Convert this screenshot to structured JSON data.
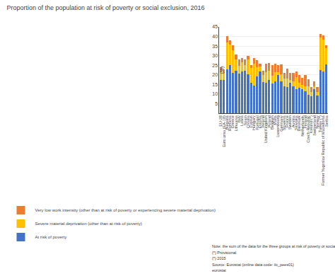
{
  "chart_data": {
    "type": "bar",
    "stacked": true,
    "title": "Proportion of the population at risk of poverty or social exclusion, 2016",
    "ylabel": "(%)",
    "ylim": [
      0,
      45
    ],
    "yticks": [
      5,
      10,
      15,
      20,
      25,
      30,
      35,
      40,
      45
    ],
    "grid": true,
    "categories": [
      "EU-28",
      "Euro area (EA-18)",
      "Bulgaria",
      "Romania",
      "Greece",
      "Lithuania",
      "Italy",
      "Latvia",
      "Spain",
      "Croatia",
      "Cyprus",
      "Hungary",
      "Portugal",
      "Estonia",
      "Ireland",
      "United Kingdom",
      "Poland",
      "Belgium",
      "Malta",
      "Luxembourg",
      "Germany",
      "Slovenia",
      "France",
      "Sweden",
      "Austria",
      "Slovakia",
      "Denmark",
      "Netherlands",
      "Finland",
      "Czech Republic",
      "Iceland (*)",
      "Switzerland",
      "Norway",
      "Turkey (*)",
      "Former Yugoslav Republic of Macedonia",
      "Serbia"
    ],
    "series": [
      {
        "name": "At risk of poverty",
        "color": "#4472c4",
        "values": [
          17.3,
          17.3,
          23.0,
          25.2,
          21.2,
          22.2,
          20.6,
          21.8,
          22.3,
          20.4,
          16.0,
          14.5,
          19.0,
          21.7,
          16.3,
          15.9,
          17.3,
          15.5,
          16.5,
          19.8,
          16.5,
          13.9,
          13.6,
          15.8,
          14.1,
          12.7,
          13.2,
          12.7,
          11.6,
          9.7,
          9.0,
          12.5,
          9.3,
          22.5,
          21.9,
          25.5
        ]
      },
      {
        "name": "Severe material deprivation (other than at risk of poverty)",
        "color": "#ffc000",
        "values": [
          4.8,
          3.6,
          14.0,
          10.6,
          11.6,
          5.8,
          4.0,
          4.7,
          2.9,
          7.5,
          7.5,
          11.4,
          5.0,
          2.6,
          3.5,
          5.4,
          5.0,
          4.0,
          4.9,
          1.7,
          3.8,
          4.2,
          4.5,
          1.4,
          2.5,
          6.0,
          2.5,
          2.2,
          2.5,
          4.2,
          2.0,
          1.5,
          1.7,
          17.0,
          16.5,
          8.5
        ]
      },
      {
        "name": "Very low work intensity (other than at risk of poverty or experiencing severe material deprivation)",
        "color": "#ed7d31",
        "values": [
          1.8,
          2.1,
          3.2,
          2.3,
          2.5,
          2.5,
          3.4,
          2.1,
          2.8,
          1.8,
          1.6,
          2.8,
          3.5,
          1.4,
          2.5,
          4.5,
          4.0,
          5.6,
          4.3,
          3.7,
          5.0,
          2.9,
          5.3,
          3.8,
          4.3,
          3.0,
          4.3,
          3.7,
          5.9,
          3.9,
          2.5,
          2.5,
          2.8,
          1.8,
          2.3,
          1.5
        ]
      }
    ],
    "annotations": [
      "Note: the sum of the data for the three groups at risk of poverty or social exclusion may differ slightly from the total (published elsewhere) due to rounding.",
      "(*) Provisional",
      "(*) 2015",
      "Source: Eurostat (online data code: ilc_pees01)",
      "eurostat"
    ]
  }
}
